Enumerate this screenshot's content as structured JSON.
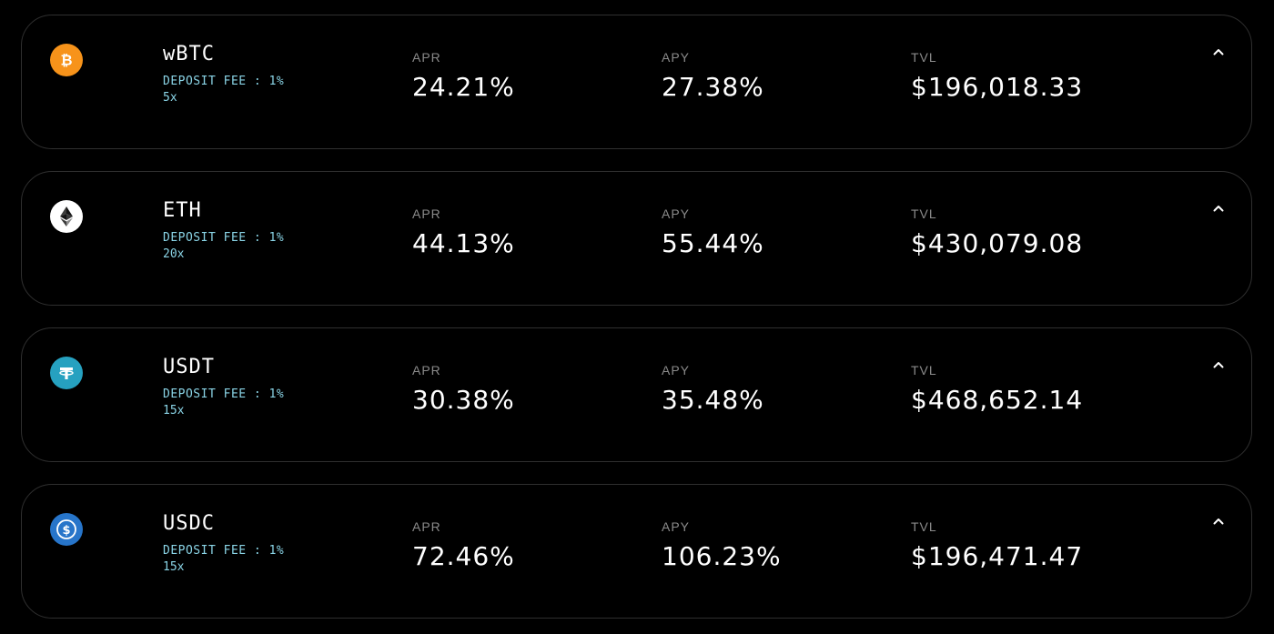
{
  "pools": [
    {
      "name": "wBTC",
      "deposit_fee": "DEPOSIT FEE : 1%",
      "leverage": "5x",
      "icon": "bitcoin-icon",
      "icon_color": "#f7931a",
      "apr_label": "APR",
      "apr": "24.21%",
      "apy_label": "APY",
      "apy": "27.38%",
      "tvl_label": "TVL",
      "tvl": "$196,018.33"
    },
    {
      "name": "ETH",
      "deposit_fee": "DEPOSIT FEE : 1%",
      "leverage": "20x",
      "icon": "ethereum-icon",
      "icon_color": "#ffffff",
      "apr_label": "APR",
      "apr": "44.13%",
      "apy_label": "APY",
      "apy": "55.44%",
      "tvl_label": "TVL",
      "tvl": "$430,079.08"
    },
    {
      "name": "USDT",
      "deposit_fee": "DEPOSIT FEE : 1%",
      "leverage": "15x",
      "icon": "tether-icon",
      "icon_color": "#26a1c0",
      "apr_label": "APR",
      "apr": "30.38%",
      "apy_label": "APY",
      "apy": "35.48%",
      "tvl_label": "TVL",
      "tvl": "$468,652.14"
    },
    {
      "name": "USDC",
      "deposit_fee": "DEPOSIT FEE : 1%",
      "leverage": "15x",
      "icon": "usd-coin-icon",
      "icon_color": "#2775ca",
      "apr_label": "APR",
      "apr": "72.46%",
      "apy_label": "APY",
      "apy": "106.23%",
      "tvl_label": "TVL",
      "tvl": "$196,471.47"
    }
  ],
  "colors": {
    "background": "#000000",
    "card_border": "#2f2f2f",
    "accent_text": "#8ad4e6",
    "label_text": "#8a8a8a",
    "value_text": "#ffffff"
  }
}
